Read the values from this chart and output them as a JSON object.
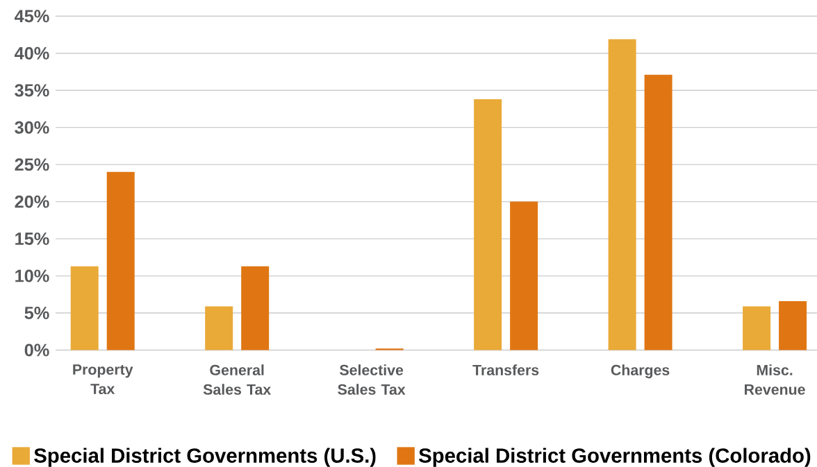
{
  "chart_data": {
    "type": "bar",
    "categories": [
      "Property Tax",
      "General Sales Tax",
      "Selective Sales Tax",
      "Transfers",
      "Charges",
      "Misc. Revenue"
    ],
    "series": [
      {
        "name": "Special District Governments (U.S.)",
        "color": "#e9aa38",
        "values": [
          11.3,
          5.9,
          0,
          33.8,
          41.9,
          5.9
        ]
      },
      {
        "name": "Special District Governments (Colorado)",
        "color": "#e07613",
        "values": [
          24.0,
          11.3,
          0.2,
          20.0,
          37.1,
          6.6
        ]
      }
    ],
    "ylim": [
      0,
      45
    ],
    "yticks": [
      {
        "value": 0,
        "label": "0%"
      },
      {
        "value": 5,
        "label": "5%"
      },
      {
        "value": 10,
        "label": "10%"
      },
      {
        "value": 15,
        "label": "15%"
      },
      {
        "value": 20,
        "label": "20%"
      },
      {
        "value": 25,
        "label": "25%"
      },
      {
        "value": 30,
        "label": "30%"
      },
      {
        "value": 35,
        "label": "35%"
      },
      {
        "value": 40,
        "label": "40%"
      },
      {
        "value": 45,
        "label": "45%"
      }
    ],
    "grid": "y",
    "legend": "bottom"
  }
}
